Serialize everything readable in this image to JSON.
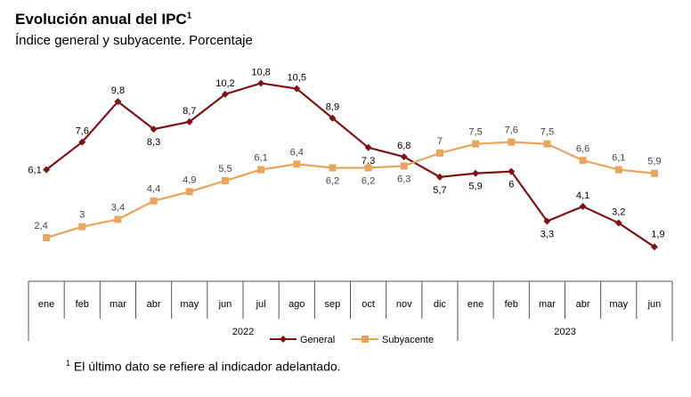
{
  "title": "Evolución anual del IPC",
  "title_sup": "1",
  "subtitle": "Índice general y subyacente. Porcentaje",
  "footnote_sup": "1",
  "footnote": "El último dato se refiere al indicador adelantado.",
  "colors": {
    "general": "#7b1416",
    "subyacente": "#e9a45f"
  },
  "chart_data": {
    "type": "line",
    "categories": [
      "ene",
      "feb",
      "mar",
      "abr",
      "may",
      "jun",
      "jul",
      "ago",
      "sep",
      "oct",
      "nov",
      "dic",
      "ene",
      "feb",
      "mar",
      "abr",
      "may",
      "jun"
    ],
    "years": [
      {
        "label": "2022",
        "from": 0,
        "to": 11
      },
      {
        "label": "2023",
        "from": 12,
        "to": 17
      }
    ],
    "series": [
      {
        "name": "General",
        "values": [
          6.1,
          7.6,
          9.8,
          8.3,
          8.7,
          10.2,
          10.8,
          10.5,
          8.9,
          7.3,
          6.8,
          5.7,
          5.9,
          6.0,
          3.3,
          4.1,
          3.2,
          1.9
        ]
      },
      {
        "name": "Subyacente",
        "values": [
          2.4,
          3.0,
          3.4,
          4.4,
          4.9,
          5.5,
          6.1,
          6.4,
          6.2,
          6.2,
          6.3,
          7.0,
          7.5,
          7.6,
          7.5,
          6.6,
          6.1,
          5.9
        ]
      }
    ],
    "ylim": [
      1.0,
      11.5
    ],
    "grid": false,
    "legend": "bottom-center"
  }
}
